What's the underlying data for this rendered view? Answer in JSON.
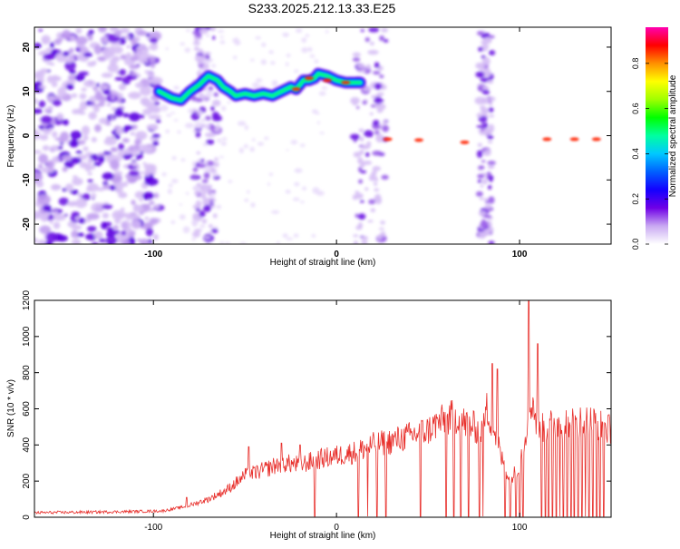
{
  "figure": {
    "title": "S233.2025.212.13.33.E25"
  },
  "chart_data": [
    {
      "type": "heatmap",
      "xlabel": "Height of straight line (km)",
      "ylabel": "Frequency (Hz)",
      "xlim": [
        -165,
        150
      ],
      "ylim": [
        -24.5,
        24.5
      ],
      "x_ticks": [
        -100,
        0,
        100
      ],
      "y_ticks": [
        -20,
        -10,
        0,
        10,
        20
      ],
      "colorbar": {
        "label": "Normalized spectral amplitude",
        "range": [
          0,
          0.96
        ],
        "ticks": [
          0.0,
          0.2,
          0.4,
          0.6,
          0.8
        ],
        "colormap": [
          "#ffffff",
          "#c9a9f2",
          "#6f00e6",
          "#1400ff",
          "#0060ff",
          "#00c8ff",
          "#00ffa0",
          "#00ff00",
          "#a0ff00",
          "#ffff00",
          "#ff9000",
          "#ff0000",
          "#ff00b0"
        ]
      },
      "ridge": {
        "description": "frequency track of strongest signal",
        "x": [
          -97,
          -90,
          -85,
          -80,
          -75,
          -70,
          -65,
          -62,
          -58,
          -55,
          -50,
          -45,
          -40,
          -35,
          -30,
          -25,
          -22,
          -18,
          -15,
          -12,
          -10,
          -5,
          0,
          5,
          10,
          13
        ],
        "y": [
          10,
          8.5,
          8,
          10,
          11.5,
          13.5,
          12.5,
          11,
          10,
          9,
          9.5,
          9,
          9.5,
          9,
          10,
          11,
          10.5,
          12.5,
          12.5,
          13,
          14,
          13.5,
          12.5,
          12,
          12,
          12
        ]
      },
      "segments": [
        {
          "x0": 27,
          "x1": 148,
          "y": -0.8,
          "note": "flat track after gap"
        }
      ],
      "noise_bands_km": [
        [
          -165,
          -95
        ],
        [
          -78,
          -65
        ],
        [
          10,
          27
        ],
        [
          78,
          85
        ]
      ]
    },
    {
      "type": "line",
      "xlabel": "Height of straight line (km)",
      "ylabel": "SNR (10 * v/v)",
      "xlim": [
        -165,
        150
      ],
      "ylim": [
        0,
        1200
      ],
      "x_ticks": [
        -100,
        0,
        100
      ],
      "y_ticks": [
        0,
        200,
        400,
        600,
        800,
        1000,
        1200
      ],
      "color": "#e8302c",
      "envelope": {
        "x": [
          -165,
          -120,
          -95,
          -82,
          -70,
          -60,
          -50,
          -40,
          -30,
          -20,
          -10,
          0,
          10,
          20,
          30,
          40,
          50,
          55,
          60,
          65,
          70,
          75,
          80,
          82,
          85,
          88,
          90,
          95,
          100,
          103,
          105,
          107,
          110,
          115,
          120,
          130,
          140,
          150
        ],
        "y": [
          25,
          30,
          35,
          60,
          100,
          150,
          230,
          260,
          300,
          290,
          320,
          340,
          360,
          400,
          420,
          450,
          480,
          520,
          540,
          560,
          520,
          500,
          470,
          600,
          520,
          420,
          330,
          200,
          300,
          450,
          580,
          650,
          480,
          500,
          520,
          530,
          530,
          480
        ]
      },
      "spikes": [
        {
          "x": 85,
          "y": 850
        },
        {
          "x": 88,
          "y": 820
        },
        {
          "x": 105,
          "y": 1200
        },
        {
          "x": 110,
          "y": 960
        },
        {
          "x": -82,
          "y": 110
        },
        {
          "x": -48,
          "y": 390
        },
        {
          "x": -30,
          "y": 410
        },
        {
          "x": -20,
          "y": 400
        }
      ],
      "dropouts_x": [
        -12,
        12,
        17,
        22,
        27,
        46,
        60,
        64,
        68,
        72,
        78,
        80,
        92,
        95,
        98,
        100,
        102,
        112,
        114,
        116,
        118,
        120,
        122,
        124,
        126,
        128,
        130,
        132,
        134,
        136,
        138,
        140,
        142,
        144,
        146
      ]
    }
  ]
}
